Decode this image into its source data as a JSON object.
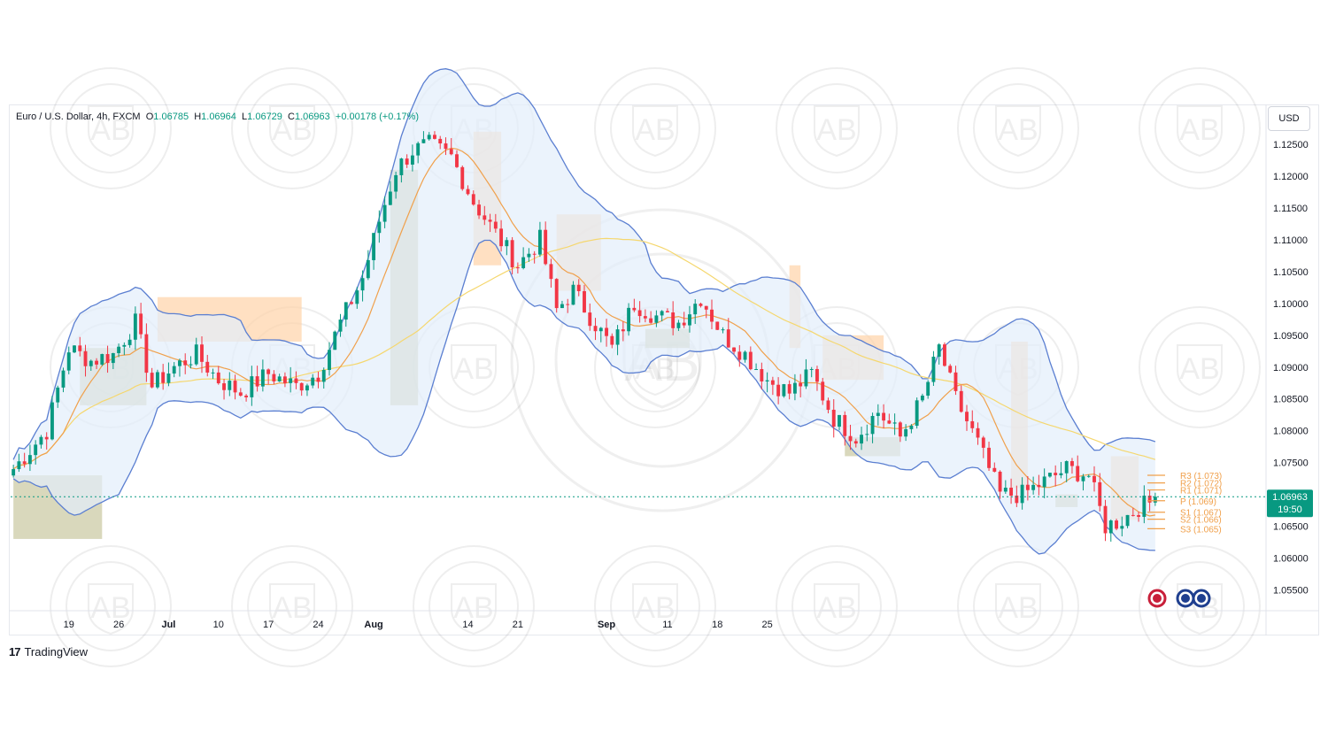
{
  "legend": {
    "symbol": "Euro / U.S. Dollar, 4h, FXCM",
    "open_label": "O",
    "open": "1.06785",
    "high_label": "H",
    "high": "1.06964",
    "low_label": "L",
    "low": "1.06729",
    "close_label": "C",
    "close": "1.06963",
    "change": "+0.00178 (+0.17%)"
  },
  "currency": "USD",
  "branding": "TradingView",
  "price_tag": {
    "price": "1.06963",
    "countdown": "19:50"
  },
  "colors": {
    "up": "#089981",
    "down": "#f23645",
    "accent": "#089981",
    "bb_line": "#5b7fd1",
    "bb_fill": "#e3eefb",
    "ma_fast": "#f0a04b",
    "ma_slow": "#f5d76e",
    "supply_zone": "#ffd3a8",
    "demand_zone": "#c9c7a0",
    "pivot": "#f0a04b"
  },
  "chart_data": {
    "type": "candlestick",
    "title": "Euro / U.S. Dollar, 4h, FXCM",
    "x_tick_labels": [
      "19",
      "26",
      "Jul",
      "10",
      "17",
      "24",
      "Aug",
      "14",
      "21",
      "Sep",
      "11",
      "18",
      "25"
    ],
    "y_tick_labels": [
      "1.12500",
      "1.12000",
      "1.11500",
      "1.11000",
      "1.10500",
      "1.10000",
      "1.09500",
      "1.09000",
      "1.08500",
      "1.08000",
      "1.07500",
      "1.06500",
      "1.06000",
      "1.05500"
    ],
    "ylim": [
      1.052,
      1.131
    ],
    "price_path": [
      [
        0,
        1.074
      ],
      [
        6,
        1.08
      ],
      [
        10,
        1.093
      ],
      [
        14,
        1.091
      ],
      [
        18,
        1.092
      ],
      [
        22,
        1.097
      ],
      [
        25,
        1.087
      ],
      [
        29,
        1.09
      ],
      [
        33,
        1.092
      ],
      [
        37,
        1.088
      ],
      [
        41,
        1.086
      ],
      [
        46,
        1.089
      ],
      [
        51,
        1.087
      ],
      [
        55,
        1.089
      ],
      [
        59,
        1.097
      ],
      [
        63,
        1.104
      ],
      [
        66,
        1.113
      ],
      [
        69,
        1.121
      ],
      [
        72,
        1.124
      ],
      [
        75,
        1.125
      ],
      [
        79,
        1.123
      ],
      [
        83,
        1.116
      ],
      [
        87,
        1.111
      ],
      [
        91,
        1.106
      ],
      [
        95,
        1.11
      ],
      [
        98,
        1.099
      ],
      [
        101,
        1.102
      ],
      [
        104,
        1.098
      ],
      [
        108,
        1.093
      ],
      [
        112,
        1.1
      ],
      [
        116,
        1.098
      ],
      [
        120,
        1.097
      ],
      [
        124,
        1.101
      ],
      [
        128,
        1.095
      ],
      [
        132,
        1.092
      ],
      [
        136,
        1.088
      ],
      [
        140,
        1.086
      ],
      [
        144,
        1.089
      ],
      [
        148,
        1.082
      ],
      [
        152,
        1.079
      ],
      [
        156,
        1.083
      ],
      [
        160,
        1.079
      ],
      [
        164,
        1.085
      ],
      [
        167,
        1.093
      ],
      [
        170,
        1.085
      ],
      [
        174,
        1.078
      ],
      [
        178,
        1.07
      ],
      [
        182,
        1.07
      ],
      [
        186,
        1.072
      ],
      [
        190,
        1.074
      ],
      [
        194,
        1.073
      ],
      [
        197,
        1.065
      ],
      [
        200,
        1.066
      ],
      [
        203,
        1.068
      ],
      [
        206,
        1.069
      ]
    ],
    "pivot_levels": [
      {
        "label": "R3 (1.073)",
        "value": 1.073
      },
      {
        "label": "R2 (1.072)",
        "value": 1.0718
      },
      {
        "label": "R1 (1.071)",
        "value": 1.0707
      },
      {
        "label": "P (1.069)",
        "value": 1.069
      },
      {
        "label": "S1 (1.067)",
        "value": 1.0672
      },
      {
        "label": "S2 (1.066)",
        "value": 1.0661
      },
      {
        "label": "S3 (1.065)",
        "value": 1.0646
      }
    ],
    "current_price": 1.06963
  }
}
